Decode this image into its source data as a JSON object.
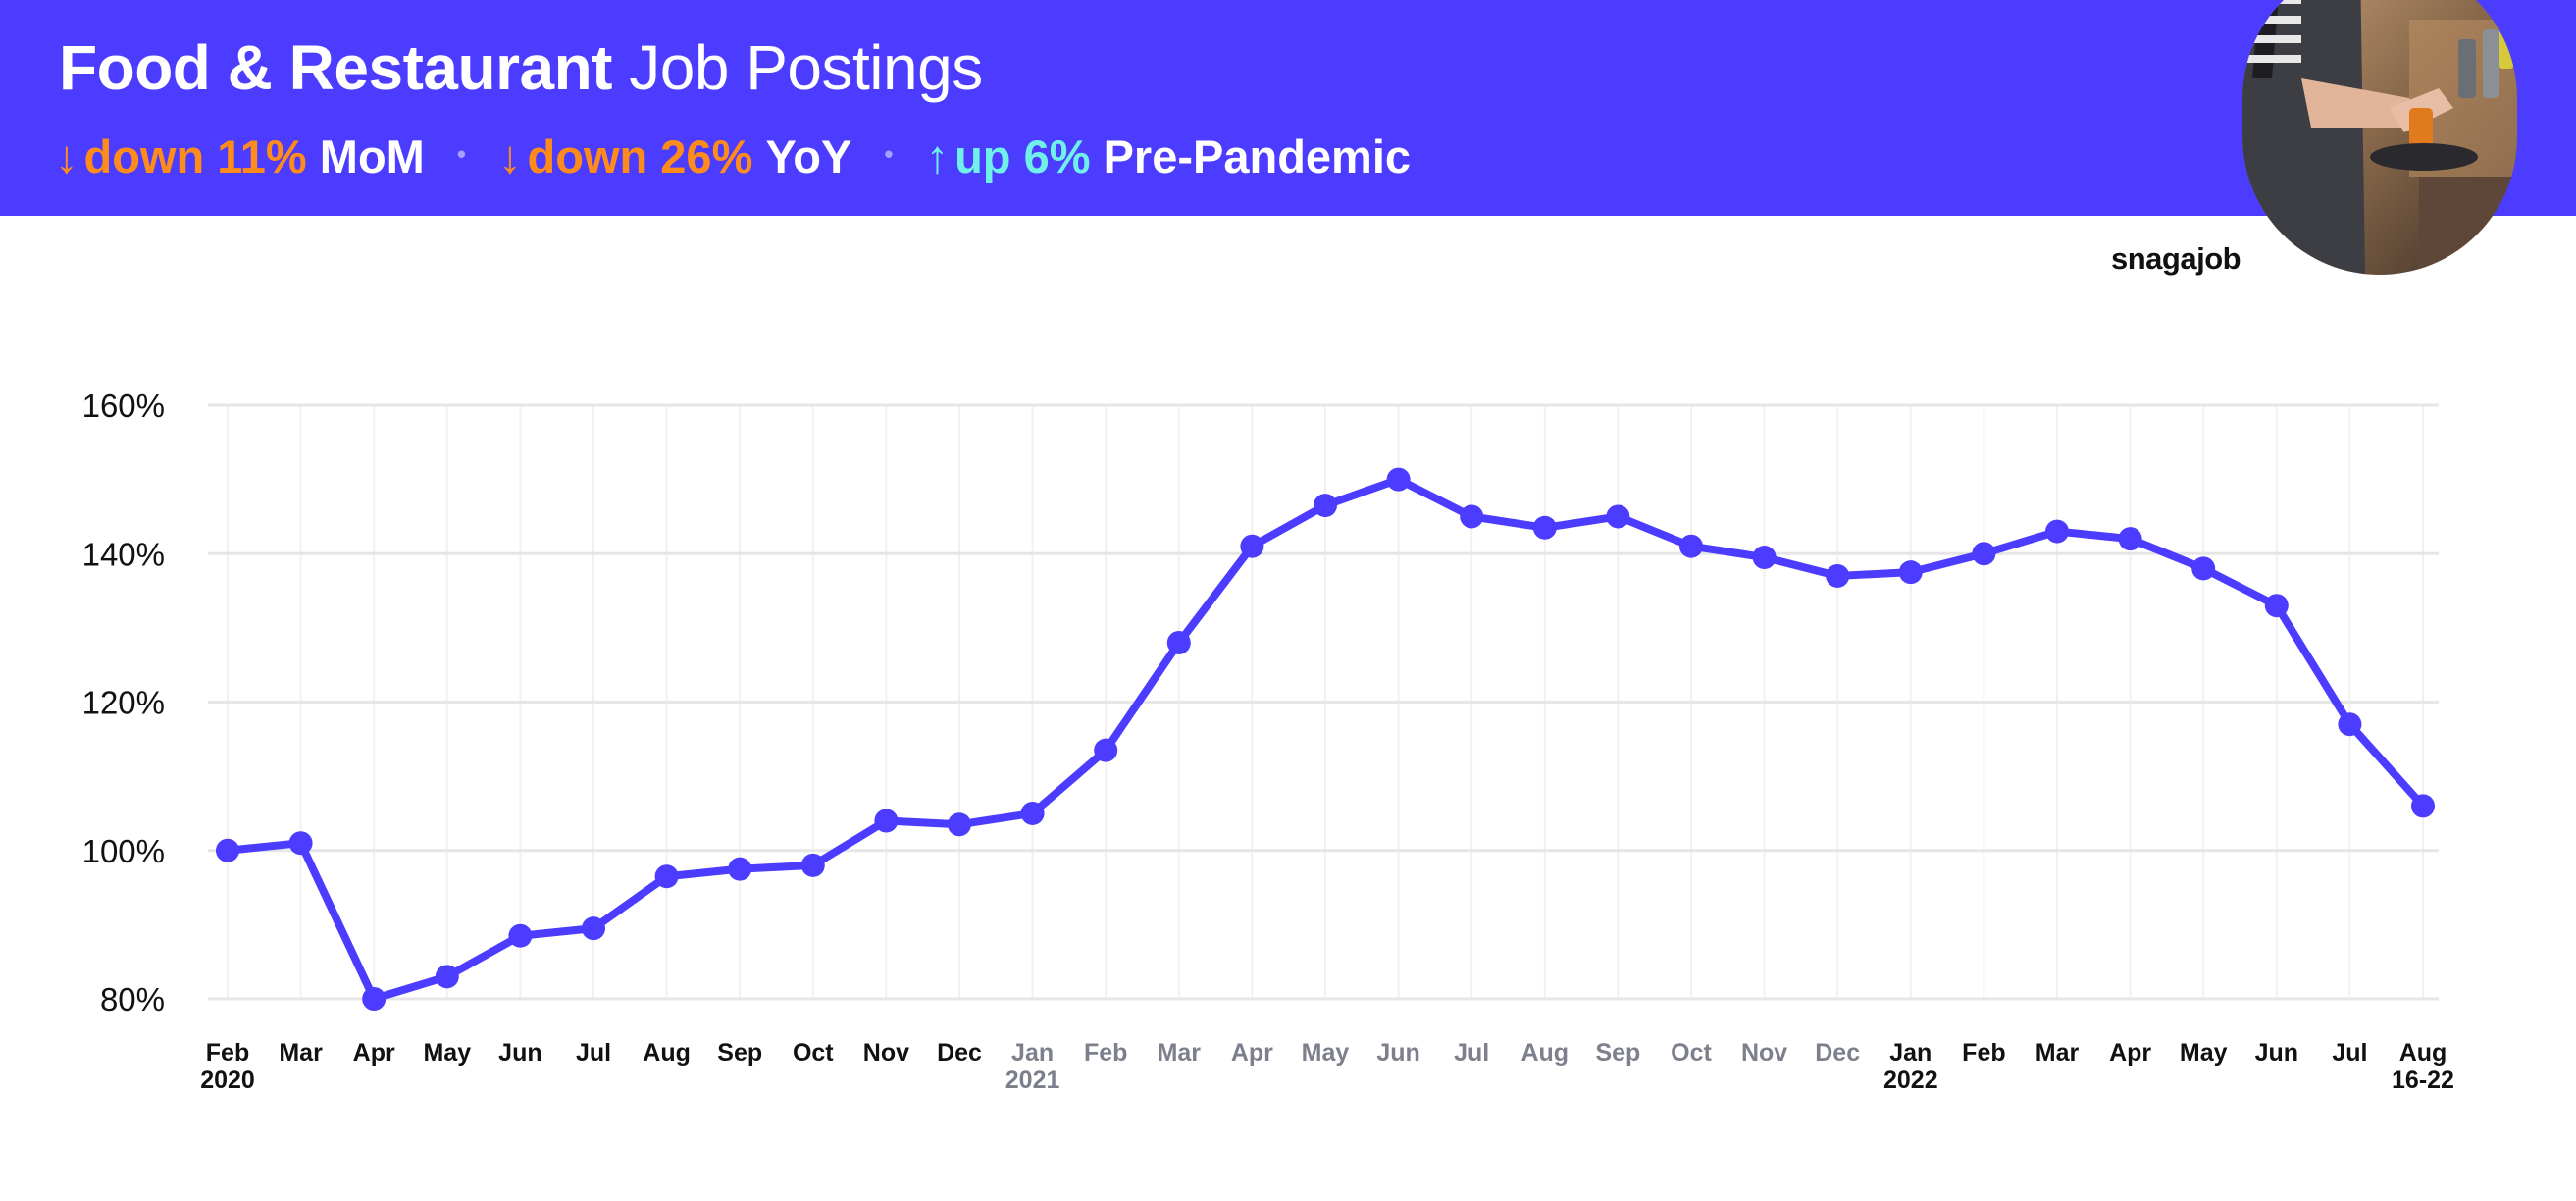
{
  "header": {
    "title_bold": "Food & Restaurant",
    "title_light": "Job Postings",
    "stats": [
      {
        "arrow": "↓",
        "value": "down 11%",
        "label": "MoM",
        "color": "#ff8c1a"
      },
      {
        "arrow": "↓",
        "value": "down 26%",
        "label": "YoY",
        "color": "#ff8c1a"
      },
      {
        "arrow": "↑",
        "value": "up 6%",
        "label": "Pre-Pandemic",
        "color": "#6ff0e8"
      }
    ],
    "separator": "•"
  },
  "brand": "snagajob",
  "colors": {
    "header_bg": "#4b3cff",
    "line": "#4b3cff",
    "grid": "#e6e6e6",
    "tick_dark": "#111111",
    "tick_muted": "#7d7f8c"
  },
  "chart_data": {
    "type": "line",
    "ylim": [
      80,
      160
    ],
    "yticks": [
      80,
      100,
      120,
      140,
      160
    ],
    "ytick_labels": [
      "80%",
      "100%",
      "120%",
      "140%",
      "160%"
    ],
    "grid": true,
    "categories": [
      {
        "label": "Feb",
        "sub": "2020",
        "muted": false
      },
      {
        "label": "Mar",
        "sub": "",
        "muted": false
      },
      {
        "label": "Apr",
        "sub": "",
        "muted": false
      },
      {
        "label": "May",
        "sub": "",
        "muted": false
      },
      {
        "label": "Jun",
        "sub": "",
        "muted": false
      },
      {
        "label": "Jul",
        "sub": "",
        "muted": false
      },
      {
        "label": "Aug",
        "sub": "",
        "muted": false
      },
      {
        "label": "Sep",
        "sub": "",
        "muted": false
      },
      {
        "label": "Oct",
        "sub": "",
        "muted": false
      },
      {
        "label": "Nov",
        "sub": "",
        "muted": false
      },
      {
        "label": "Dec",
        "sub": "",
        "muted": false
      },
      {
        "label": "Jan",
        "sub": "2021",
        "muted": true
      },
      {
        "label": "Feb",
        "sub": "",
        "muted": true
      },
      {
        "label": "Mar",
        "sub": "",
        "muted": true
      },
      {
        "label": "Apr",
        "sub": "",
        "muted": true
      },
      {
        "label": "May",
        "sub": "",
        "muted": true
      },
      {
        "label": "Jun",
        "sub": "",
        "muted": true
      },
      {
        "label": "Jul",
        "sub": "",
        "muted": true
      },
      {
        "label": "Aug",
        "sub": "",
        "muted": true
      },
      {
        "label": "Sep",
        "sub": "",
        "muted": true
      },
      {
        "label": "Oct",
        "sub": "",
        "muted": true
      },
      {
        "label": "Nov",
        "sub": "",
        "muted": true
      },
      {
        "label": "Dec",
        "sub": "",
        "muted": true
      },
      {
        "label": "Jan",
        "sub": "2022",
        "muted": false
      },
      {
        "label": "Feb",
        "sub": "",
        "muted": false
      },
      {
        "label": "Mar",
        "sub": "",
        "muted": false
      },
      {
        "label": "Apr",
        "sub": "",
        "muted": false
      },
      {
        "label": "May",
        "sub": "",
        "muted": false
      },
      {
        "label": "Jun",
        "sub": "",
        "muted": false
      },
      {
        "label": "Jul",
        "sub": "",
        "muted": false
      },
      {
        "label": "Aug",
        "sub": "16-22",
        "muted": false
      }
    ],
    "series": [
      {
        "values": [
          100,
          101,
          80,
          83,
          88.5,
          89.5,
          96.5,
          97.5,
          98,
          104,
          103.5,
          105,
          113.5,
          128,
          141,
          146.5,
          150,
          145,
          143.5,
          145,
          141,
          139.5,
          137,
          137.5,
          140,
          143,
          142,
          138,
          133,
          117,
          106
        ]
      }
    ]
  }
}
